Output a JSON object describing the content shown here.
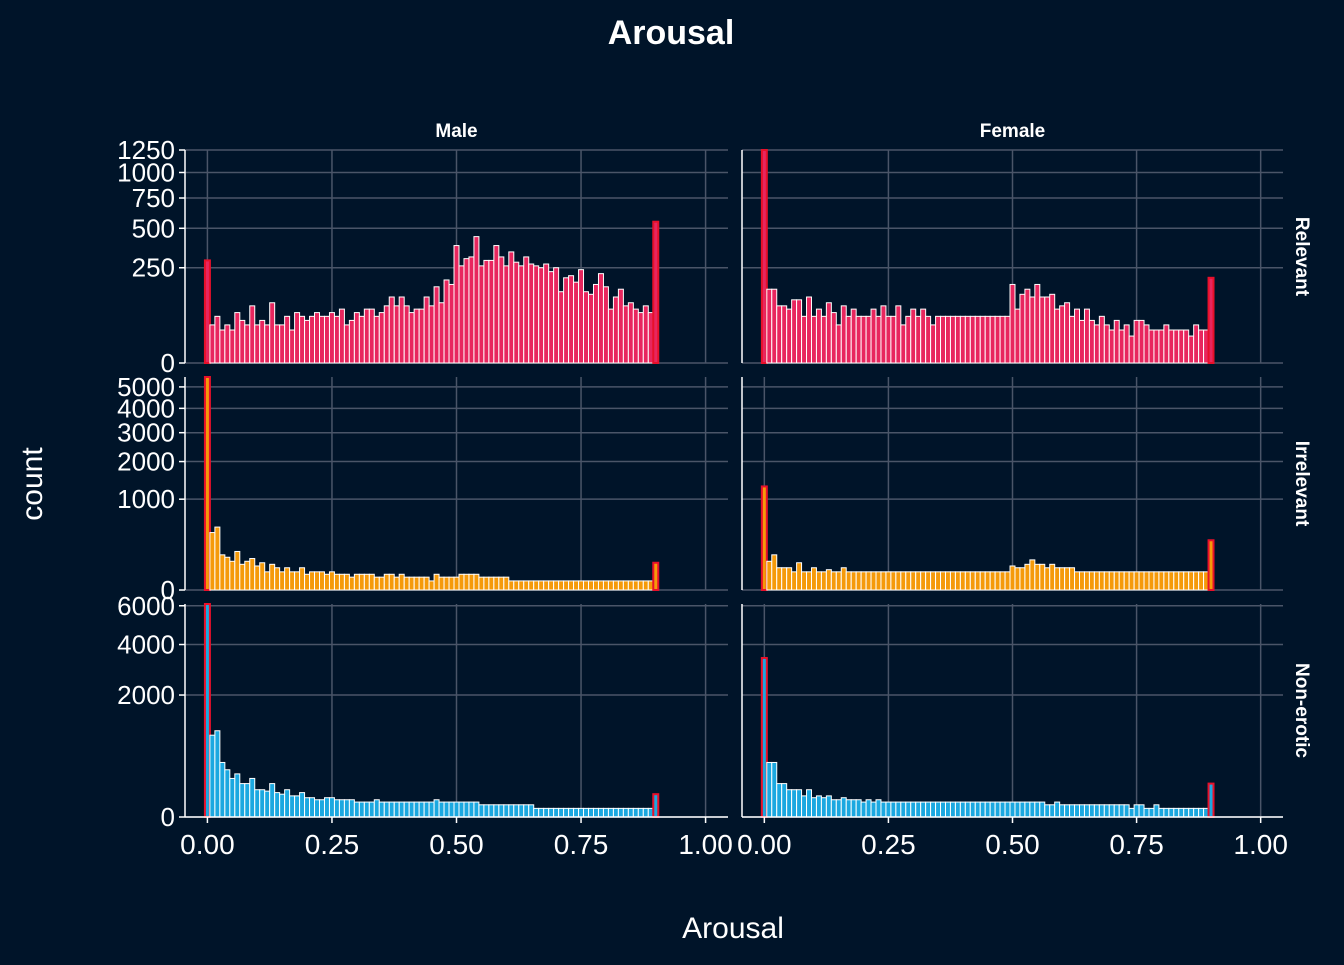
{
  "chart_data": {
    "type": "bar",
    "title": "Arousal",
    "xlabel": "Arousal",
    "ylabel": "count",
    "y_scale": "sqrt",
    "grid": true,
    "columns": [
      "Male",
      "Female"
    ],
    "rows": [
      "Relevant",
      "Irrelevant",
      "Non-erotic"
    ],
    "x_range": [
      0,
      1
    ],
    "x_ticks": [
      0,
      0.25,
      0.5,
      0.75,
      1
    ],
    "x_tick_labels": [
      "0.00",
      "0.25",
      "0.50",
      "0.75",
      "1.00"
    ],
    "colors": {
      "background": "#001429",
      "grid": "#4a5568",
      "text": "#ffffff",
      "Relevant": "#e8265e",
      "Irrelevant": "#f59a0a",
      "Non-erotic": "#1ba8e0",
      "edge_outline": "#e8102a"
    },
    "bins": [
      0,
      0.01,
      0.02,
      0.03,
      0.04,
      0.05,
      0.06,
      0.07,
      0.08,
      0.09,
      0.1,
      0.11,
      0.12,
      0.13,
      0.14,
      0.15,
      0.16,
      0.17,
      0.18,
      0.19,
      0.2,
      0.21,
      0.22,
      0.23,
      0.24,
      0.25,
      0.26,
      0.27,
      0.28,
      0.29,
      0.3,
      0.31,
      0.32,
      0.33,
      0.34,
      0.35,
      0.36,
      0.37,
      0.38,
      0.39,
      0.4,
      0.41,
      0.42,
      0.43,
      0.44,
      0.45,
      0.46,
      0.47,
      0.48,
      0.49,
      0.5,
      0.51,
      0.52,
      0.53,
      0.54,
      0.55,
      0.56,
      0.57,
      0.58,
      0.59,
      0.6,
      0.61,
      0.62,
      0.63,
      0.64,
      0.65,
      0.66,
      0.67,
      0.68,
      0.69,
      0.7,
      0.71,
      0.72,
      0.73,
      0.74,
      0.75,
      0.76,
      0.77,
      0.78,
      0.79,
      0.8,
      0.81,
      0.82,
      0.83,
      0.84,
      0.85,
      0.86,
      0.87,
      0.88,
      0.89,
      0.9,
      0.91,
      0.92,
      0.93,
      0.94,
      0.95,
      0.96,
      0.97,
      0.98,
      0.99,
      1.0
    ],
    "panels": [
      {
        "row": "Relevant",
        "column": "Male",
        "y_ticks": [
          0,
          250,
          500,
          750,
          1000,
          1250
        ],
        "y_max": 1250,
        "counts": [
          290,
          40,
          60,
          30,
          40,
          30,
          70,
          50,
          40,
          90,
          40,
          50,
          40,
          100,
          40,
          40,
          60,
          30,
          70,
          60,
          50,
          60,
          70,
          60,
          60,
          70,
          60,
          80,
          40,
          50,
          70,
          60,
          80,
          80,
          60,
          70,
          90,
          120,
          90,
          120,
          90,
          70,
          80,
          80,
          120,
          90,
          160,
          100,
          190,
          170,
          380,
          260,
          300,
          310,
          440,
          260,
          290,
          290,
          380,
          310,
          260,
          340,
          280,
          260,
          310,
          270,
          260,
          250,
          270,
          230,
          250,
          140,
          200,
          210,
          180,
          240,
          140,
          130,
          170,
          220,
          160,
          80,
          120,
          150,
          90,
          100,
          80,
          70,
          90,
          70,
          550
        ]
      },
      {
        "row": "Relevant",
        "column": "Female",
        "y_ticks": [
          0,
          250,
          500,
          750,
          1000,
          1250
        ],
        "y_max": 1250,
        "counts": [
          1250,
          150,
          150,
          90,
          90,
          80,
          110,
          110,
          60,
          120,
          60,
          80,
          60,
          100,
          70,
          40,
          90,
          60,
          80,
          60,
          60,
          60,
          80,
          60,
          90,
          60,
          60,
          90,
          40,
          60,
          80,
          60,
          80,
          60,
          40,
          60,
          60,
          60,
          60,
          60,
          60,
          60,
          60,
          60,
          60,
          60,
          60,
          60,
          60,
          60,
          170,
          80,
          130,
          150,
          120,
          170,
          120,
          120,
          130,
          80,
          90,
          100,
          60,
          80,
          50,
          80,
          50,
          40,
          60,
          40,
          30,
          50,
          30,
          40,
          20,
          50,
          50,
          40,
          30,
          30,
          30,
          40,
          30,
          30,
          30,
          30,
          20,
          40,
          30,
          30,
          200
        ]
      },
      {
        "row": "Irrelevant",
        "column": "Male",
        "y_ticks": [
          0,
          1000,
          2000,
          3000,
          4000,
          5000
        ],
        "y_max": 5500,
        "counts": [
          5500,
          400,
          480,
          150,
          130,
          100,
          180,
          80,
          100,
          120,
          70,
          90,
          40,
          80,
          60,
          40,
          60,
          40,
          40,
          60,
          30,
          40,
          40,
          40,
          30,
          40,
          30,
          30,
          30,
          20,
          30,
          30,
          30,
          30,
          20,
          20,
          30,
          30,
          20,
          30,
          20,
          20,
          20,
          20,
          20,
          10,
          30,
          20,
          20,
          20,
          20,
          30,
          30,
          30,
          30,
          20,
          20,
          20,
          20,
          20,
          20,
          10,
          10,
          10,
          10,
          10,
          10,
          10,
          10,
          10,
          10,
          10,
          10,
          10,
          10,
          10,
          10,
          10,
          10,
          10,
          10,
          10,
          10,
          10,
          10,
          10,
          10,
          10,
          10,
          10,
          90
        ]
      },
      {
        "row": "Irrelevant",
        "column": "Female",
        "y_ticks": [
          0,
          1000,
          2000,
          3000,
          4000,
          5000
        ],
        "y_max": 5500,
        "counts": [
          1300,
          100,
          150,
          60,
          60,
          60,
          40,
          90,
          40,
          40,
          60,
          40,
          40,
          50,
          40,
          40,
          60,
          40,
          40,
          40,
          40,
          40,
          40,
          40,
          40,
          40,
          40,
          40,
          40,
          40,
          40,
          40,
          40,
          40,
          40,
          40,
          40,
          40,
          40,
          40,
          40,
          40,
          40,
          40,
          40,
          40,
          40,
          40,
          40,
          40,
          70,
          60,
          60,
          80,
          110,
          80,
          80,
          60,
          80,
          60,
          60,
          60,
          60,
          40,
          40,
          40,
          40,
          40,
          40,
          40,
          40,
          40,
          40,
          40,
          40,
          40,
          40,
          40,
          40,
          40,
          40,
          40,
          40,
          40,
          40,
          40,
          40,
          40,
          40,
          40,
          300
        ]
      },
      {
        "row": "Non-erotic",
        "column": "Male",
        "y_ticks": [
          0,
          2000,
          4000,
          6000
        ],
        "y_max": 6100,
        "counts": [
          6100,
          900,
          1000,
          400,
          300,
          200,
          250,
          150,
          150,
          200,
          100,
          100,
          90,
          150,
          80,
          70,
          100,
          60,
          60,
          80,
          50,
          50,
          40,
          40,
          50,
          50,
          40,
          40,
          40,
          40,
          30,
          30,
          30,
          30,
          40,
          30,
          30,
          30,
          30,
          30,
          30,
          30,
          30,
          30,
          30,
          30,
          40,
          30,
          30,
          30,
          30,
          30,
          30,
          30,
          30,
          20,
          20,
          20,
          20,
          20,
          20,
          20,
          20,
          20,
          20,
          20,
          10,
          10,
          10,
          10,
          10,
          10,
          10,
          10,
          10,
          10,
          10,
          10,
          10,
          10,
          10,
          10,
          10,
          10,
          10,
          10,
          10,
          10,
          10,
          10,
          70
        ]
      },
      {
        "row": "Non-erotic",
        "column": "Female",
        "y_ticks": [
          0,
          2000,
          4000,
          6000
        ],
        "y_max": 6100,
        "counts": [
          3400,
          400,
          400,
          150,
          150,
          100,
          100,
          100,
          60,
          100,
          50,
          60,
          50,
          60,
          40,
          40,
          50,
          40,
          40,
          40,
          30,
          40,
          30,
          40,
          30,
          30,
          30,
          30,
          30,
          30,
          30,
          30,
          30,
          30,
          30,
          30,
          30,
          30,
          30,
          30,
          30,
          30,
          30,
          30,
          30,
          30,
          30,
          30,
          30,
          30,
          30,
          30,
          30,
          30,
          30,
          30,
          30,
          20,
          20,
          30,
          20,
          20,
          20,
          20,
          20,
          20,
          20,
          20,
          20,
          20,
          20,
          20,
          20,
          20,
          10,
          20,
          20,
          10,
          10,
          20,
          10,
          10,
          10,
          10,
          10,
          10,
          10,
          10,
          10,
          10,
          150
        ]
      }
    ]
  }
}
